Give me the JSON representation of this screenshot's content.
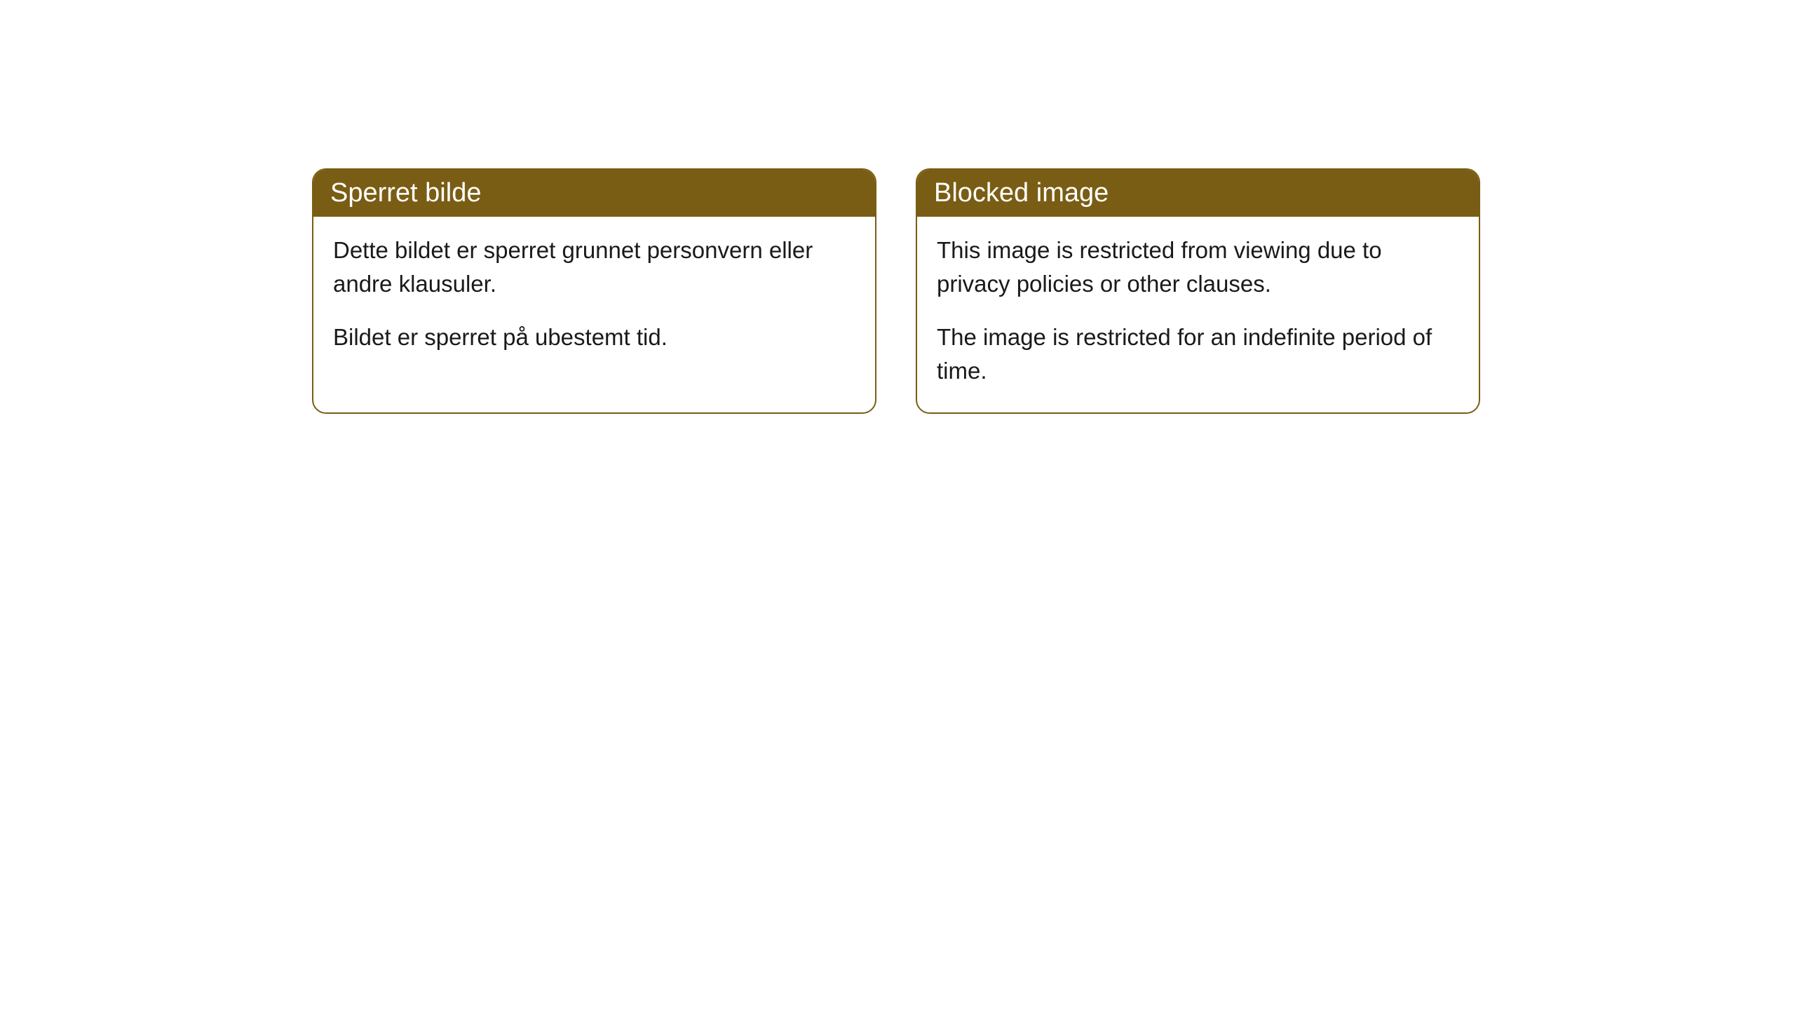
{
  "cards": [
    {
      "title": "Sperret bilde",
      "paragraph1": "Dette bildet er sperret grunnet personvern eller andre klausuler.",
      "paragraph2": "Bildet er sperret på ubestemt tid."
    },
    {
      "title": "Blocked image",
      "paragraph1": "This image is restricted from viewing due to privacy policies or other clauses.",
      "paragraph2": "The image is restricted for an indefinite period of time."
    }
  ],
  "style": {
    "header_bg": "#7a5d14",
    "header_text_color": "#ffffff",
    "border_color": "#7a5d14",
    "body_bg": "#ffffff",
    "body_text_color": "#1a1a1a",
    "border_radius": 20,
    "header_fontsize": 38,
    "body_fontsize": 33
  }
}
